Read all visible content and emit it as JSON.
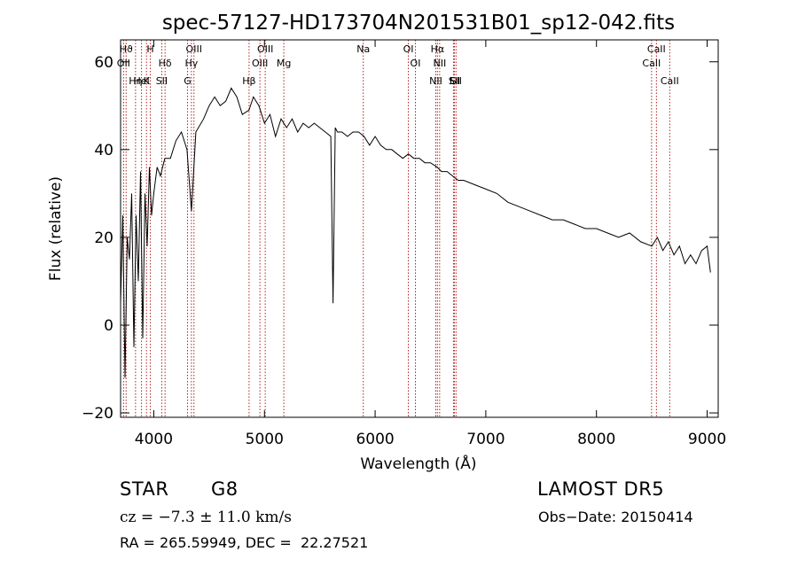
{
  "chart_data": {
    "type": "line",
    "title": "spec-57127-HD173704N201531B01_sp12-042.fits",
    "xlabel": "Wavelength (Å)",
    "ylabel": "Flux (relative)",
    "xlim": [
      3700,
      9100
    ],
    "ylim": [
      -21,
      65
    ],
    "xticks": [
      4000,
      5000,
      6000,
      7000,
      8000,
      9000
    ],
    "xtick_labels": [
      "4000",
      "5000",
      "6000",
      "7000",
      "8000",
      "9000"
    ],
    "yticks": [
      -20,
      0,
      20,
      40,
      60
    ],
    "ytick_labels": [
      "−20",
      "0",
      "20",
      "40",
      "60"
    ],
    "grid": false,
    "line_color": "#000000",
    "marker_color": "#b22222",
    "series": [
      {
        "x": [
          3700,
          3720,
          3740,
          3760,
          3780,
          3800,
          3820,
          3840,
          3860,
          3880,
          3900,
          3920,
          3940,
          3960,
          3980,
          4000,
          4030,
          4060,
          4100,
          4150,
          4200,
          4250,
          4300,
          4340,
          4380,
          4450,
          4500,
          4550,
          4600,
          4650,
          4700,
          4750,
          4800,
          4860,
          4900,
          4950,
          5000,
          5050,
          5100,
          5150,
          5200,
          5250,
          5300,
          5350,
          5400,
          5450,
          5500,
          5550,
          5600,
          5620,
          5640,
          5660,
          5700,
          5750,
          5800,
          5850,
          5900,
          5950,
          6000,
          6050,
          6100,
          6150,
          6200,
          6250,
          6300,
          6350,
          6400,
          6450,
          6500,
          6560,
          6600,
          6650,
          6700,
          6750,
          6800,
          6900,
          7000,
          7100,
          7200,
          7300,
          7400,
          7500,
          7600,
          7700,
          7800,
          7900,
          8000,
          8100,
          8200,
          8300,
          8400,
          8500,
          8550,
          8600,
          8650,
          8700,
          8750,
          8800,
          8850,
          8900,
          8950,
          9000,
          9030
        ],
        "values": [
          5,
          25,
          -12,
          20,
          15,
          30,
          -5,
          25,
          10,
          35,
          -3,
          30,
          18,
          36,
          25,
          30,
          36,
          34,
          38,
          38,
          42,
          44,
          40,
          26,
          44,
          47,
          50,
          52,
          50,
          51,
          54,
          52,
          48,
          49,
          52,
          50,
          46,
          48,
          43,
          47,
          45,
          47,
          44,
          46,
          45,
          46,
          45,
          44,
          43,
          5,
          45,
          44,
          44,
          43,
          44,
          44,
          43,
          41,
          43,
          41,
          40,
          40,
          39,
          38,
          39,
          38,
          38,
          37,
          37,
          36,
          35,
          35,
          34,
          33,
          33,
          32,
          31,
          30,
          28,
          27,
          26,
          25,
          24,
          24,
          23,
          22,
          22,
          21,
          20,
          21,
          19,
          18,
          20,
          17,
          19,
          16,
          18,
          14,
          16,
          14,
          17,
          18,
          12
        ]
      }
    ],
    "lines": [
      {
        "label": "Hϑ",
        "x": 3750
      },
      {
        "label": "OII",
        "x": 3727
      },
      {
        "label": "K",
        "x": 3934
      },
      {
        "label": "HeI",
        "x": 3889
      },
      {
        "label": "Hη",
        "x": 3835
      },
      {
        "label": "H",
        "x": 3969
      },
      {
        "label": "Hδ",
        "x": 4102
      },
      {
        "label": "SII",
        "x": 4072
      },
      {
        "label": "OIII",
        "x": 4363
      },
      {
        "label": "Hγ",
        "x": 4340
      },
      {
        "label": "G",
        "x": 4305
      },
      {
        "label": "OIII",
        "x": 5007
      },
      {
        "label": "OIII",
        "x": 4959
      },
      {
        "label": "Hβ",
        "x": 4861
      },
      {
        "label": "Mg",
        "x": 5175
      },
      {
        "label": "Na",
        "x": 5893
      },
      {
        "label": "OI",
        "x": 6300
      },
      {
        "label": "OI",
        "x": 6364
      },
      {
        "label": "Hα",
        "x": 6563
      },
      {
        "label": "NII",
        "x": 6548
      },
      {
        "label": "NII",
        "x": 6583
      },
      {
        "label": "SII",
        "x": 6716
      },
      {
        "label": "Li",
        "x": 6708
      },
      {
        "label": "SII",
        "x": 6731
      },
      {
        "label": "CaII",
        "x": 8542
      },
      {
        "label": "CaII",
        "x": 8498
      },
      {
        "label": "CaII",
        "x": 8662
      }
    ]
  },
  "info": {
    "class": "STAR",
    "subclass": "G8",
    "survey": "LAMOST DR5",
    "cz": "cz = −7.3 ± 11.0 km/s",
    "obsdate": "Obs−Date: 20150414",
    "coords": "RA = 265.59949, DEC =  22.27521"
  }
}
